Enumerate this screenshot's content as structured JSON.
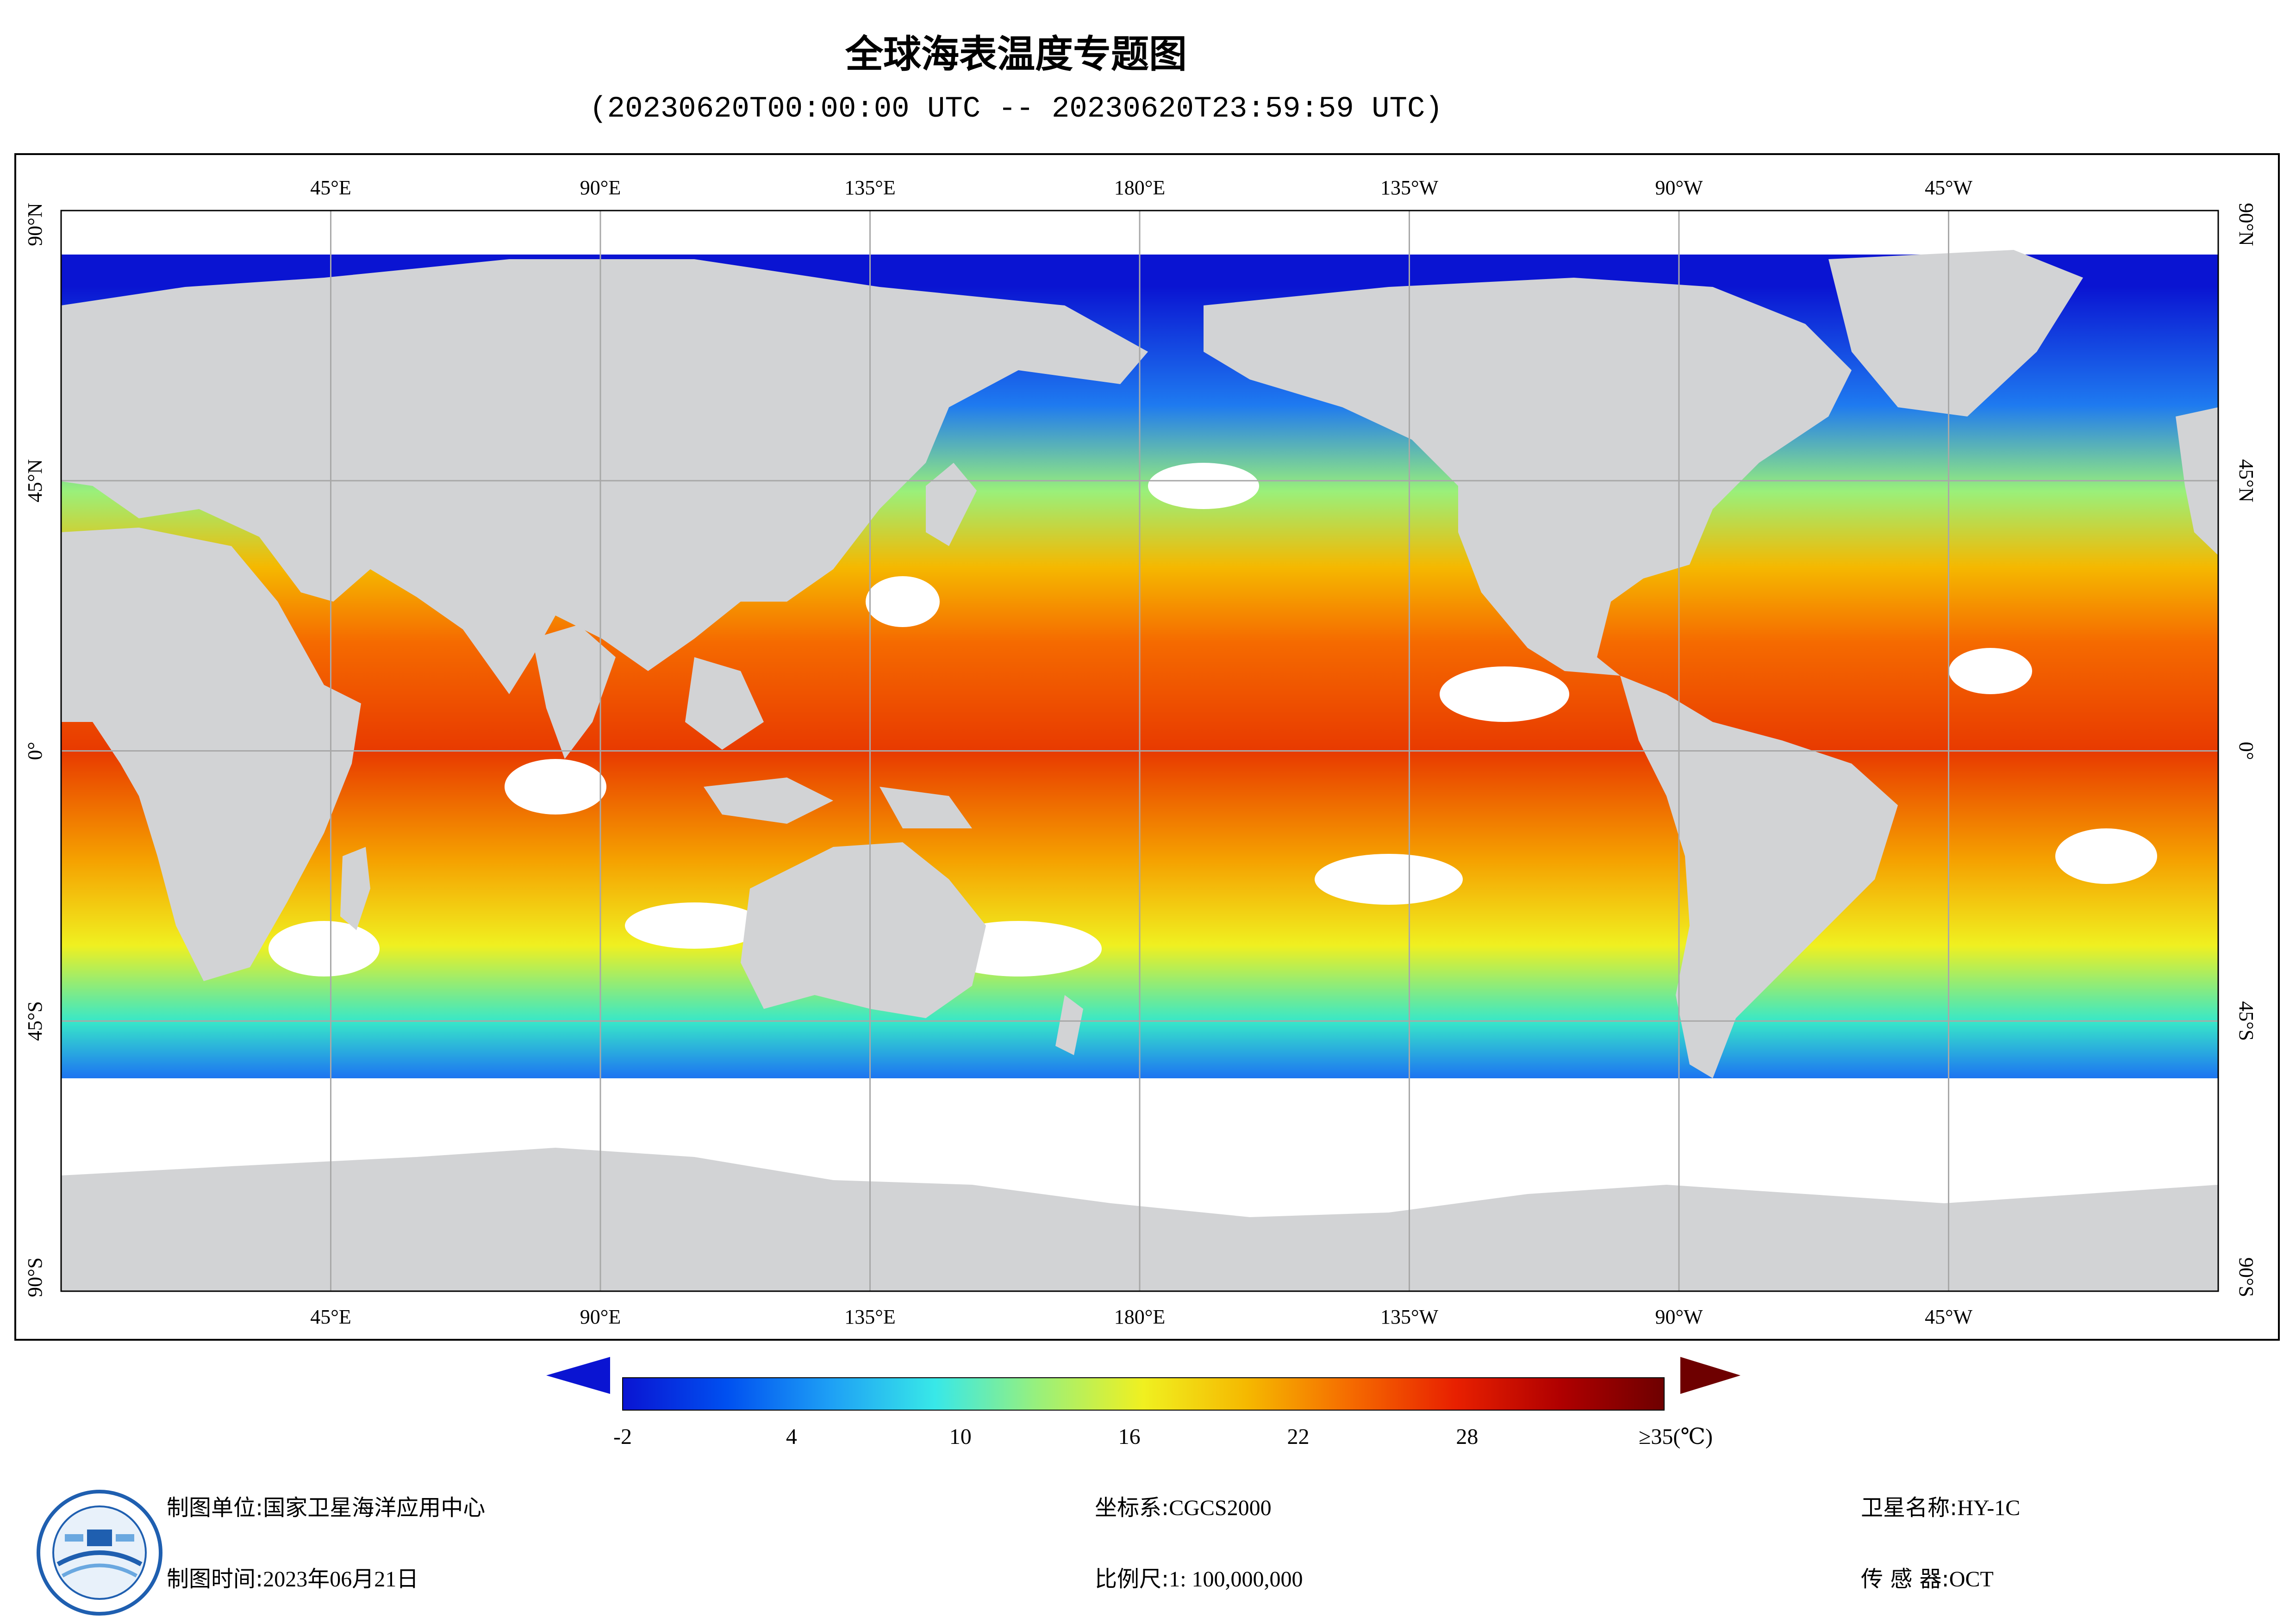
{
  "header": {
    "title": "全球海表温度专题图",
    "subtitle": "(20230620T00:00:00 UTC -- 20230620T23:59:59 UTC)"
  },
  "map": {
    "top_lon_labels": [
      "45°E",
      "90°E",
      "135°E",
      "180°E",
      "135°W",
      "90°W",
      "45°W"
    ],
    "bottom_lon_labels": [
      "45°E",
      "90°E",
      "135°E",
      "180°E",
      "135°W",
      "90°W",
      "45°W"
    ],
    "left_lat_labels": [
      "90°N",
      "45°N",
      "0°",
      "45°S",
      "90°S"
    ],
    "right_lat_labels": [
      "90°N",
      "45°N",
      "0°",
      "45°S",
      "90°S"
    ],
    "colors": {
      "land": "#d2d3d5",
      "cloud": "#ffffff",
      "grid": "#a8a8a8"
    }
  },
  "legend": {
    "tick_labels": [
      "-2",
      "4",
      "10",
      "16",
      "22",
      "28",
      "≥35(℃)"
    ],
    "min_value": -2,
    "max_value": 35,
    "colors": [
      "#0a14d2",
      "#0050f0",
      "#1ea0f5",
      "#38e8e8",
      "#9af07a",
      "#f0f020",
      "#f5b800",
      "#f56a00",
      "#e82000",
      "#b00000",
      "#6e0000"
    ]
  },
  "info": {
    "unit_label": "制图单位:",
    "unit_value": "国家卫星海洋应用中心",
    "time_label": "制图时间:",
    "time_value": "2023年06月21日",
    "coord_label": "坐标系:",
    "coord_value": "CGCS2000",
    "scale_label": "比例尺:",
    "scale_value": "1: 100,000,000",
    "sat_label": "卫星名称:",
    "sat_value": "HY-1C",
    "sensor_label": "传 感 器:",
    "sensor_value": "OCT"
  }
}
